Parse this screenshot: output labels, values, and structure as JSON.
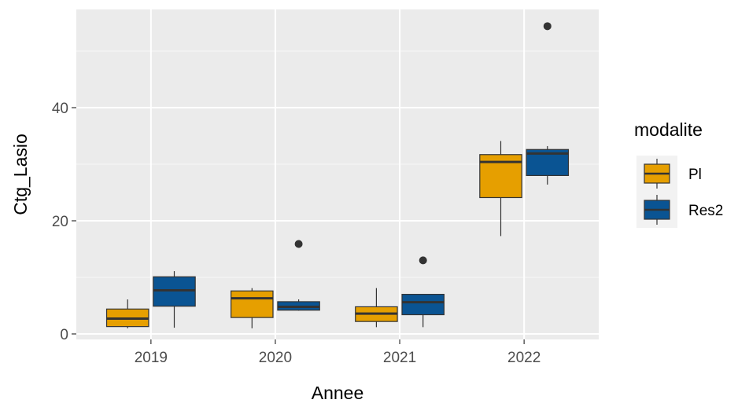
{
  "chart_data": {
    "type": "boxplot",
    "xlabel": "Annee",
    "ylabel": "Ctg_Lasio",
    "categories": [
      "2019",
      "2020",
      "2021",
      "2022"
    ],
    "ylim": [
      -1.5,
      57
    ],
    "yticks": [
      0,
      20,
      40
    ],
    "grid": true,
    "legend": {
      "title": "modalite",
      "position": "right"
    },
    "series": [
      {
        "name": "Pl",
        "color": "#E69F00",
        "boxes": [
          {
            "category": "2019",
            "min": 1.0,
            "q1": 1.3,
            "median": 2.7,
            "q3": 4.4,
            "max": 6.1,
            "outliers": []
          },
          {
            "category": "2020",
            "min": 1.0,
            "q1": 2.9,
            "median": 6.3,
            "q3": 7.6,
            "max": 8.1,
            "outliers": []
          },
          {
            "category": "2021",
            "min": 1.2,
            "q1": 2.2,
            "median": 3.6,
            "q3": 4.8,
            "max": 8.1,
            "outliers": []
          },
          {
            "category": "2022",
            "min": 17.3,
            "q1": 24.1,
            "median": 30.4,
            "q3": 31.7,
            "max": 34.1,
            "outliers": []
          }
        ]
      },
      {
        "name": "Res2",
        "color": "#0A5493",
        "boxes": [
          {
            "category": "2019",
            "min": 1.1,
            "q1": 4.9,
            "median": 7.7,
            "q3": 10.1,
            "max": 11.1,
            "outliers": []
          },
          {
            "category": "2020",
            "min": 4.1,
            "q1": 4.2,
            "median": 4.8,
            "q3": 5.7,
            "max": 6.1,
            "outliers": [
              15.9
            ]
          },
          {
            "category": "2021",
            "min": 1.2,
            "q1": 3.4,
            "median": 5.6,
            "q3": 7.0,
            "max": 7.0,
            "outliers": [
              13.0
            ]
          },
          {
            "category": "2022",
            "min": 26.4,
            "q1": 28.0,
            "median": 31.9,
            "q3": 32.6,
            "max": 33.2,
            "outliers": [
              54.4
            ]
          }
        ]
      }
    ]
  }
}
